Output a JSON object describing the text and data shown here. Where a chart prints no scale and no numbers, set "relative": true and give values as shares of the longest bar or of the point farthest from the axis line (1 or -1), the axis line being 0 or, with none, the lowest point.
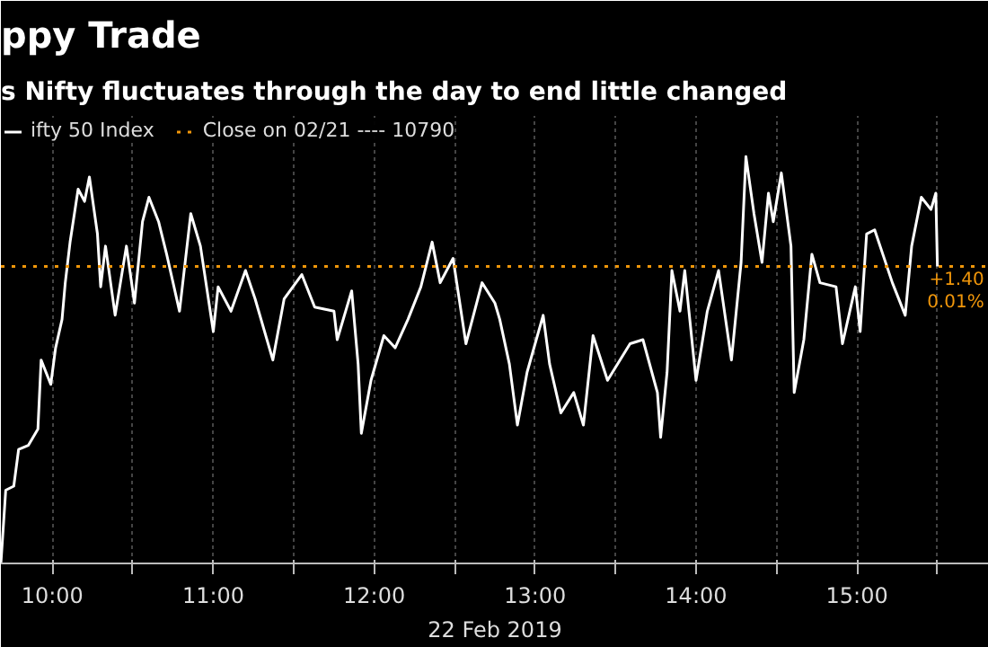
{
  "chart_data": {
    "type": "line",
    "title": "ppy Trade",
    "subtitle": "s Nifty fluctuates through the day to end little changed",
    "xlabel": "22 Feb 2019",
    "relative": true,
    "x": [
      9.68,
      9.71,
      9.76,
      9.79,
      9.85,
      9.91,
      9.93,
      9.99,
      10.02,
      10.06,
      10.08,
      10.11,
      10.16,
      10.2,
      10.23,
      10.28,
      10.3,
      10.33,
      10.39,
      10.46,
      10.51,
      10.56,
      10.6,
      10.66,
      10.71,
      10.79,
      10.86,
      10.92,
      11.0,
      11.03,
      11.11,
      11.2,
      11.26,
      11.37,
      11.44,
      11.55,
      11.63,
      11.75,
      11.77,
      11.86,
      11.9,
      11.92,
      11.98,
      12.06,
      12.13,
      12.21,
      12.29,
      12.36,
      12.41,
      12.49,
      12.57,
      12.67,
      12.75,
      12.78,
      12.84,
      12.89,
      12.95,
      13.05,
      13.09,
      13.16,
      13.24,
      13.3,
      13.36,
      13.45,
      13.59,
      13.67,
      13.76,
      13.78,
      13.82,
      13.85,
      13.9,
      13.93,
      14.0,
      14.07,
      14.14,
      14.22,
      14.28,
      14.31,
      14.36,
      14.41,
      14.45,
      14.48,
      14.53,
      14.59,
      14.61,
      14.67,
      14.72,
      14.77,
      14.87,
      14.91,
      14.99,
      15.02,
      15.06,
      15.11,
      15.22,
      15.3,
      15.34,
      15.4,
      15.46,
      15.49,
      15.5
    ],
    "series": [
      {
        "name": "ifty 50 Index",
        "color": "#ffffff",
        "values": [
          0,
          0.18,
          0.19,
          0.28,
          0.29,
          0.33,
          0.5,
          0.44,
          0.53,
          0.6,
          0.69,
          0.79,
          0.92,
          0.89,
          0.95,
          0.81,
          0.68,
          0.78,
          0.61,
          0.78,
          0.64,
          0.84,
          0.9,
          0.84,
          0.76,
          0.62,
          0.86,
          0.78,
          0.57,
          0.68,
          0.62,
          0.72,
          0.65,
          0.5,
          0.65,
          0.71,
          0.63,
          0.62,
          0.55,
          0.67,
          0.49,
          0.32,
          0.45,
          0.56,
          0.53,
          0.6,
          0.68,
          0.79,
          0.69,
          0.75,
          0.54,
          0.69,
          0.64,
          0.6,
          0.49,
          0.34,
          0.47,
          0.61,
          0.49,
          0.37,
          0.42,
          0.34,
          0.56,
          0.45,
          0.54,
          0.55,
          0.42,
          0.31,
          0.47,
          0.72,
          0.62,
          0.72,
          0.45,
          0.62,
          0.72,
          0.5,
          0.74,
          1.0,
          0.86,
          0.74,
          0.91,
          0.84,
          0.96,
          0.78,
          0.42,
          0.55,
          0.76,
          0.69,
          0.68,
          0.54,
          0.68,
          0.57,
          0.81,
          0.82,
          0.69,
          0.61,
          0.78,
          0.9,
          0.87,
          0.91,
          0.73
        ]
      }
    ],
    "xticks": [
      {
        "value": 10,
        "label": "10:00"
      },
      {
        "value": 10.5,
        "label": null
      },
      {
        "value": 11,
        "label": "11:00"
      },
      {
        "value": 11.5,
        "label": null
      },
      {
        "value": 12,
        "label": "12:00"
      },
      {
        "value": 12.5,
        "label": null
      },
      {
        "value": 13,
        "label": "13:00"
      },
      {
        "value": 13.5,
        "label": null
      },
      {
        "value": 14,
        "label": "14:00"
      },
      {
        "value": 14.5,
        "label": null
      },
      {
        "value": 15,
        "label": "15:00"
      },
      {
        "value": 15.5,
        "label": null
      }
    ],
    "xlim": [
      9.68,
      15.82
    ],
    "ref_lines": [
      {
        "axis": "y",
        "value": 0.73,
        "label": "Close on 02/21 ---- 10790",
        "color": "#f0960a",
        "line_style": "dotted"
      }
    ],
    "annotations": [
      {
        "text": "+1.40",
        "x": 15.5,
        "y": 0.73
      },
      {
        "text": "0.01%",
        "x": 15.5,
        "y": 0.73
      }
    ],
    "grid": "x",
    "legend": "top left",
    "line_style": "solid"
  }
}
